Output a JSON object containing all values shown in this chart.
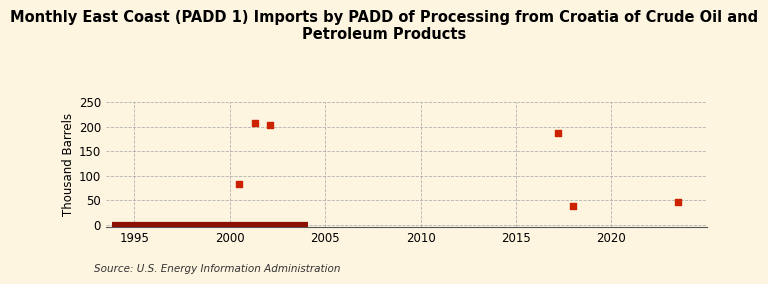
{
  "title": "Monthly East Coast (PADD 1) Imports by PADD of Processing from Croatia of Crude Oil and\nPetroleum Products",
  "ylabel": "Thousand Barrels",
  "source": "Source: U.S. Energy Information Administration",
  "xlim": [
    1993.5,
    2025
  ],
  "ylim": [
    -5,
    250
  ],
  "yticks": [
    0,
    50,
    100,
    150,
    200,
    250
  ],
  "xticks": [
    1995,
    2000,
    2005,
    2010,
    2015,
    2020
  ],
  "background_color": "#fdf5e0",
  "plot_bg_color": "#fdf5e0",
  "marker_color": "#cc2200",
  "line_color": "#8b1000",
  "scatter_points": [
    [
      2000.5,
      83
    ],
    [
      2001.3,
      207
    ],
    [
      2002.1,
      204
    ],
    [
      2017.2,
      188
    ],
    [
      2018.0,
      38
    ],
    [
      2023.5,
      47
    ]
  ],
  "line_x_start": 1993.8,
  "line_x_end": 2004.1,
  "line_y": 0,
  "title_fontsize": 10.5,
  "tick_fontsize": 8.5,
  "ylabel_fontsize": 8.5,
  "source_fontsize": 7.5
}
